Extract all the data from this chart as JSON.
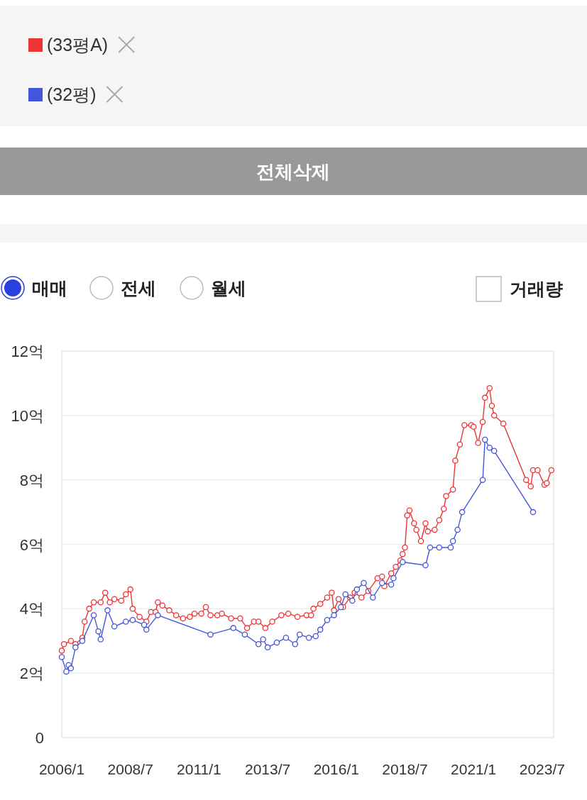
{
  "chart_data": {
    "type": "line",
    "legend": "top left",
    "marker": "circle",
    "line_style": "solid",
    "grid": "y",
    "annotations": [
      "전체삭제",
      "매매",
      "전세",
      "월세",
      "거래량"
    ],
    "xlim": [
      "2006-01",
      "2023-12"
    ],
    "xticks": [
      {
        "value": "2006-01",
        "label": "2006/1"
      },
      {
        "value": "2008-07",
        "label": "2008/7"
      },
      {
        "value": "2011-01",
        "label": "2011/1"
      },
      {
        "value": "2013-07",
        "label": "2013/7"
      },
      {
        "value": "2016-01",
        "label": "2016/1"
      },
      {
        "value": "2018-07",
        "label": "2018/7"
      },
      {
        "value": "2021-01",
        "label": "2021/1"
      },
      {
        "value": "2023-07",
        "label": "2023/7"
      }
    ],
    "ylim": [
      0,
      12
    ],
    "yticks": [
      0,
      {
        "value": 2,
        "label": "2억"
      },
      {
        "value": 4,
        "label": "4억"
      },
      {
        "value": 6,
        "label": "6억"
      },
      {
        "value": 8,
        "label": "8억"
      },
      {
        "value": 10,
        "label": "10억"
      },
      {
        "value": 12,
        "label": "12억"
      }
    ],
    "series": [
      {
        "name": "(33평A)",
        "color": "#ee3333",
        "x": [
          "2006-01",
          "2006-02",
          "2006-05",
          "2006-07",
          "2006-10",
          "2006-11",
          "2007-01",
          "2007-03",
          "2007-06",
          "2007-08",
          "2007-10",
          "2007-12",
          "2008-03",
          "2008-05",
          "2008-07",
          "2008-08",
          "2008-11",
          "2009-02",
          "2009-04",
          "2009-06",
          "2009-07",
          "2009-09",
          "2009-12",
          "2010-03",
          "2010-06",
          "2010-09",
          "2010-11",
          "2011-02",
          "2011-04",
          "2011-06",
          "2011-09",
          "2011-11",
          "2012-03",
          "2012-07",
          "2012-10",
          "2013-01",
          "2013-03",
          "2013-06",
          "2013-09",
          "2014-01",
          "2014-04",
          "2014-08",
          "2014-12",
          "2015-02",
          "2015-03",
          "2015-06",
          "2015-09",
          "2015-11",
          "2015-12",
          "2016-02",
          "2016-04",
          "2016-07",
          "2016-09",
          "2016-12",
          "2017-03",
          "2017-07",
          "2017-09",
          "2017-10",
          "2018-01",
          "2018-03",
          "2018-05",
          "2018-06",
          "2018-07",
          "2018-08",
          "2018-09",
          "2018-11",
          "2018-12",
          "2019-02",
          "2019-04",
          "2019-05",
          "2019-08",
          "2019-10",
          "2019-12",
          "2020-01",
          "2020-04",
          "2020-05",
          "2020-07",
          "2020-09",
          "2020-12",
          "2021-01",
          "2021-03",
          "2021-05",
          "2021-06",
          "2021-08",
          "2021-09",
          "2021-10",
          "2022-02",
          "2022-12",
          "2023-02",
          "2023-03",
          "2023-05",
          "2023-08",
          "2023-09",
          "2023-11"
        ],
        "values": [
          2.7,
          2.9,
          3.0,
          2.9,
          3.1,
          3.6,
          4.0,
          4.2,
          4.2,
          4.5,
          4.2,
          4.3,
          4.25,
          4.45,
          4.6,
          4.0,
          3.75,
          3.6,
          3.9,
          3.9,
          4.2,
          4.1,
          3.95,
          3.8,
          3.7,
          3.75,
          3.85,
          3.85,
          4.05,
          3.8,
          3.8,
          3.85,
          3.7,
          3.7,
          3.4,
          3.6,
          3.6,
          3.4,
          3.6,
          3.8,
          3.85,
          3.75,
          3.8,
          3.8,
          4.0,
          4.15,
          4.35,
          4.5,
          3.95,
          4.3,
          4.05,
          4.35,
          4.5,
          4.35,
          4.55,
          4.95,
          5.0,
          4.7,
          5.1,
          5.3,
          5.5,
          5.7,
          5.9,
          6.9,
          7.05,
          6.65,
          6.45,
          6.1,
          6.65,
          6.4,
          6.45,
          6.75,
          7.1,
          7.5,
          7.7,
          8.6,
          9.1,
          9.7,
          9.7,
          9.65,
          9.15,
          9.8,
          10.55,
          10.85,
          10.3,
          10.0,
          9.75,
          8.0,
          7.8,
          8.3,
          8.3,
          7.85,
          7.9,
          8.3
        ]
      },
      {
        "name": "(32평)",
        "color": "#4455dd",
        "x": [
          "2006-01",
          "2006-03",
          "2006-04",
          "2006-05",
          "2006-07",
          "2006-10",
          "2007-03",
          "2007-05",
          "2007-06",
          "2007-09",
          "2007-12",
          "2008-05",
          "2008-08",
          "2009-01",
          "2009-02",
          "2009-07",
          "2011-06",
          "2012-04",
          "2012-09",
          "2013-03",
          "2013-05",
          "2013-07",
          "2013-11",
          "2014-03",
          "2014-07",
          "2014-09",
          "2015-01",
          "2015-04",
          "2015-06",
          "2015-09",
          "2015-12",
          "2016-03",
          "2016-05",
          "2016-08",
          "2016-10",
          "2017-01",
          "2017-05",
          "2017-09",
          "2018-01",
          "2018-02",
          "2018-06",
          "2019-04",
          "2019-06",
          "2019-10",
          "2020-03",
          "2020-04",
          "2020-06",
          "2020-08",
          "2021-05",
          "2021-06",
          "2021-08",
          "2021-10",
          "2023-03"
        ],
        "values": [
          2.5,
          2.05,
          2.25,
          2.15,
          2.8,
          3.0,
          3.8,
          3.3,
          3.05,
          3.95,
          3.45,
          3.6,
          3.65,
          3.5,
          3.35,
          3.8,
          3.2,
          3.4,
          3.2,
          2.9,
          3.05,
          2.8,
          2.95,
          3.1,
          2.9,
          3.2,
          3.1,
          3.15,
          3.35,
          3.65,
          3.8,
          4.05,
          4.45,
          4.25,
          4.6,
          4.8,
          4.35,
          4.8,
          4.75,
          4.95,
          5.45,
          5.35,
          5.9,
          5.9,
          5.9,
          6.1,
          6.45,
          7.0,
          8.0,
          9.25,
          9.0,
          8.9,
          7.0
        ]
      }
    ]
  }
}
